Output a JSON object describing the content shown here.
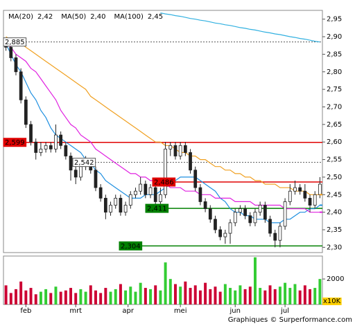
{
  "chart_data": {
    "type": "candlestick",
    "legend": [
      {
        "name": "MA(20)",
        "current": {
          "value": 2.42,
          "label": "2,42"
        }
      },
      {
        "name": "MA(50)",
        "current": {
          "value": 2.4,
          "label": "2,40"
        }
      },
      {
        "name": "MA(100)",
        "current": {
          "value": 2.45,
          "label": "2,45"
        }
      }
    ],
    "ylim": [
      2.285,
      2.975
    ],
    "yticks": [
      {
        "value": 2.3,
        "label": "2,30"
      },
      {
        "value": 2.35,
        "label": "2,35"
      },
      {
        "value": 2.4,
        "label": "2,40"
      },
      {
        "value": 2.45,
        "label": "2,45"
      },
      {
        "value": 2.5,
        "label": "2,50"
      },
      {
        "value": 2.55,
        "label": "2,55"
      },
      {
        "value": 2.6,
        "label": "2,60"
      },
      {
        "value": 2.65,
        "label": "2,65"
      },
      {
        "value": 2.7,
        "label": "2,70"
      },
      {
        "value": 2.75,
        "label": "2,75"
      },
      {
        "value": 2.8,
        "label": "2,80"
      },
      {
        "value": 2.85,
        "label": "2,85"
      },
      {
        "value": 2.9,
        "label": "2,90"
      },
      {
        "value": 2.95,
        "label": "2,95"
      }
    ],
    "xlim": [
      -0.5,
      63.5
    ],
    "xticks": [
      {
        "value": 4,
        "label": "feb"
      },
      {
        "value": 14,
        "label": "mrt"
      },
      {
        "value": 24.5,
        "label": "apr"
      },
      {
        "value": 35,
        "label": "mei"
      },
      {
        "value": 46,
        "label": "jun"
      },
      {
        "value": 56,
        "label": "jul"
      }
    ],
    "open": [
      2.88,
      2.87,
      2.84,
      2.8,
      2.72,
      2.65,
      2.6,
      2.57,
      2.58,
      2.59,
      2.58,
      2.62,
      2.59,
      2.56,
      2.52,
      2.5,
      2.53,
      2.54,
      2.52,
      2.47,
      2.44,
      2.4,
      2.42,
      2.44,
      2.4,
      2.42,
      2.45,
      2.46,
      2.48,
      2.45,
      2.47,
      2.43,
      2.45,
      2.58,
      2.59,
      2.56,
      2.59,
      2.57,
      2.52,
      2.47,
      2.43,
      2.41,
      2.38,
      2.35,
      2.33,
      2.34,
      2.37,
      2.4,
      2.41,
      2.39,
      2.37,
      2.4,
      2.42,
      2.38,
      2.34,
      2.32,
      2.36,
      2.43,
      2.46,
      2.47,
      2.46,
      2.44,
      2.42,
      2.45
    ],
    "high": [
      2.89,
      2.88,
      2.85,
      2.81,
      2.73,
      2.66,
      2.61,
      2.6,
      2.6,
      2.6,
      2.65,
      2.63,
      2.6,
      2.57,
      2.53,
      2.54,
      2.56,
      2.55,
      2.53,
      2.48,
      2.45,
      2.43,
      2.45,
      2.45,
      2.43,
      2.46,
      2.47,
      2.5,
      2.49,
      2.48,
      2.48,
      2.47,
      2.6,
      2.6,
      2.6,
      2.6,
      2.6,
      2.58,
      2.53,
      2.48,
      2.44,
      2.42,
      2.39,
      2.36,
      2.35,
      2.38,
      2.41,
      2.42,
      2.42,
      2.4,
      2.41,
      2.43,
      2.43,
      2.39,
      2.35,
      2.37,
      2.44,
      2.48,
      2.49,
      2.48,
      2.48,
      2.45,
      2.46,
      2.5
    ],
    "low": [
      2.86,
      2.83,
      2.79,
      2.71,
      2.64,
      2.59,
      2.55,
      2.56,
      2.57,
      2.57,
      2.57,
      2.58,
      2.55,
      2.49,
      2.48,
      2.49,
      2.52,
      2.51,
      2.46,
      2.43,
      2.38,
      2.39,
      2.41,
      2.39,
      2.39,
      2.41,
      2.44,
      2.45,
      2.44,
      2.44,
      2.42,
      2.41,
      2.44,
      2.56,
      2.55,
      2.55,
      2.56,
      2.51,
      2.46,
      2.42,
      2.4,
      2.37,
      2.34,
      2.32,
      2.31,
      2.31,
      2.36,
      2.39,
      2.38,
      2.36,
      2.36,
      2.39,
      2.37,
      2.33,
      2.3,
      2.3,
      2.35,
      2.42,
      2.45,
      2.45,
      2.43,
      2.4,
      2.41,
      2.44
    ],
    "close": [
      2.87,
      2.84,
      2.8,
      2.72,
      2.65,
      2.6,
      2.57,
      2.58,
      2.59,
      2.58,
      2.62,
      2.59,
      2.56,
      2.52,
      2.5,
      2.53,
      2.54,
      2.52,
      2.47,
      2.44,
      2.4,
      2.42,
      2.44,
      2.4,
      2.42,
      2.45,
      2.46,
      2.48,
      2.45,
      2.47,
      2.43,
      2.45,
      2.58,
      2.59,
      2.56,
      2.59,
      2.57,
      2.52,
      2.47,
      2.43,
      2.41,
      2.38,
      2.35,
      2.33,
      2.34,
      2.37,
      2.4,
      2.41,
      2.39,
      2.37,
      2.4,
      2.42,
      2.38,
      2.34,
      2.32,
      2.36,
      2.43,
      2.46,
      2.47,
      2.46,
      2.44,
      2.42,
      2.45,
      2.48
    ],
    "series": [
      {
        "name": "MA(20)",
        "color": "#1e8fe0",
        "values": [
          2.88,
          2.85,
          2.82,
          2.8,
          2.77,
          2.74,
          2.72,
          2.69,
          2.67,
          2.64,
          2.62,
          2.61,
          2.6,
          2.59,
          2.58,
          2.57,
          2.55,
          2.54,
          2.52,
          2.51,
          2.49,
          2.48,
          2.47,
          2.46,
          2.45,
          2.44,
          2.44,
          2.44,
          2.45,
          2.45,
          2.45,
          2.46,
          2.47,
          2.48,
          2.49,
          2.5,
          2.5,
          2.5,
          2.5,
          2.49,
          2.48,
          2.47,
          2.46,
          2.44,
          2.43,
          2.41,
          2.4,
          2.4,
          2.39,
          2.39,
          2.38,
          2.38,
          2.38,
          2.37,
          2.37,
          2.37,
          2.38,
          2.38,
          2.39,
          2.4,
          2.4,
          2.41,
          2.41,
          2.42
        ]
      },
      {
        "name": "MA(50)",
        "color": "#e020e0",
        "values": [
          2.88,
          2.87,
          2.85,
          2.84,
          2.83,
          2.81,
          2.8,
          2.78,
          2.76,
          2.74,
          2.72,
          2.69,
          2.67,
          2.65,
          2.64,
          2.62,
          2.61,
          2.6,
          2.58,
          2.57,
          2.56,
          2.55,
          2.54,
          2.53,
          2.52,
          2.51,
          2.51,
          2.5,
          2.5,
          2.49,
          2.49,
          2.48,
          2.48,
          2.47,
          2.47,
          2.47,
          2.46,
          2.46,
          2.46,
          2.45,
          2.45,
          2.45,
          2.44,
          2.44,
          2.44,
          2.44,
          2.43,
          2.43,
          2.43,
          2.43,
          2.42,
          2.42,
          2.42,
          2.42,
          2.42,
          2.42,
          2.41,
          2.41,
          2.41,
          2.41,
          2.41,
          2.4,
          2.4,
          2.4
        ]
      },
      {
        "name": "MA(100)",
        "color": "#f0a020",
        "values": [
          2.9,
          2.89,
          2.88,
          2.88,
          2.87,
          2.86,
          2.85,
          2.84,
          2.83,
          2.82,
          2.81,
          2.8,
          2.79,
          2.78,
          2.77,
          2.76,
          2.75,
          2.73,
          2.72,
          2.71,
          2.7,
          2.69,
          2.68,
          2.67,
          2.66,
          2.65,
          2.64,
          2.63,
          2.62,
          2.61,
          2.6,
          2.6,
          2.59,
          2.59,
          2.58,
          2.57,
          2.57,
          2.56,
          2.56,
          2.55,
          2.55,
          2.54,
          2.53,
          2.53,
          2.52,
          2.52,
          2.51,
          2.51,
          2.5,
          2.5,
          2.49,
          2.49,
          2.48,
          2.48,
          2.48,
          2.47,
          2.47,
          2.47,
          2.46,
          2.46,
          2.46,
          2.45,
          2.45,
          2.45
        ]
      },
      {
        "color": "#30b0e0",
        "values": [
          null,
          null,
          null,
          null,
          null,
          null,
          null,
          null,
          null,
          null,
          null,
          null,
          null,
          null,
          null,
          null,
          null,
          null,
          null,
          null,
          null,
          null,
          null,
          null,
          null,
          null,
          null,
          null,
          null,
          null,
          null,
          2.968,
          2.965,
          2.963,
          2.96,
          2.958,
          2.955,
          2.952,
          2.95,
          2.947,
          2.945,
          2.942,
          2.939,
          2.937,
          2.934,
          2.932,
          2.929,
          2.926,
          2.924,
          2.921,
          2.919,
          2.916,
          2.913,
          2.911,
          2.908,
          2.906,
          2.903,
          2.9,
          2.898,
          2.895,
          2.893,
          2.89,
          2.887,
          2.885
        ]
      }
    ],
    "levels": [
      {
        "value": 2.885,
        "label": "2,885",
        "color": "#555555",
        "style": "dashed"
      },
      {
        "value": 2.599,
        "label": "2,599",
        "color": "#e00000",
        "style": "solid"
      },
      {
        "value": 2.542,
        "label": "2,542",
        "color": "#555555",
        "style": "dashed"
      },
      {
        "value": 2.486,
        "label": "2,486",
        "color": "#e00000",
        "style": "solid"
      },
      {
        "value": 2.411,
        "label": "2,411",
        "color": "#008000",
        "style": "solid"
      },
      {
        "value": 2.304,
        "label": "2,304",
        "color": "#008000",
        "style": "solid"
      }
    ],
    "volume": [
      1500,
      900,
      1200,
      1800,
      1100,
      1300,
      800,
      1000,
      1200,
      900,
      1400,
      1000,
      1100,
      1300,
      900,
      1200,
      1000,
      1500,
      1100,
      900,
      1300,
      1000,
      1200,
      1600,
      1100,
      1400,
      1000,
      1700,
      1300,
      1200,
      1500,
      1100,
      3300,
      2000,
      1600,
      1400,
      1800,
      1300,
      1500,
      1100,
      1700,
      1200,
      1400,
      1000,
      1600,
      1300,
      1100,
      1500,
      1200,
      1400,
      3700,
      1300,
      1100,
      1500,
      1200,
      1400,
      1700,
      1300,
      1600,
      1100,
      1500,
      1200,
      1300,
      2000
    ],
    "vlim": [
      0,
      3800
    ],
    "vticks": [
      2000
    ],
    "volume_unit": "x10K",
    "footer": "Graphiques © Surperformance.com"
  }
}
